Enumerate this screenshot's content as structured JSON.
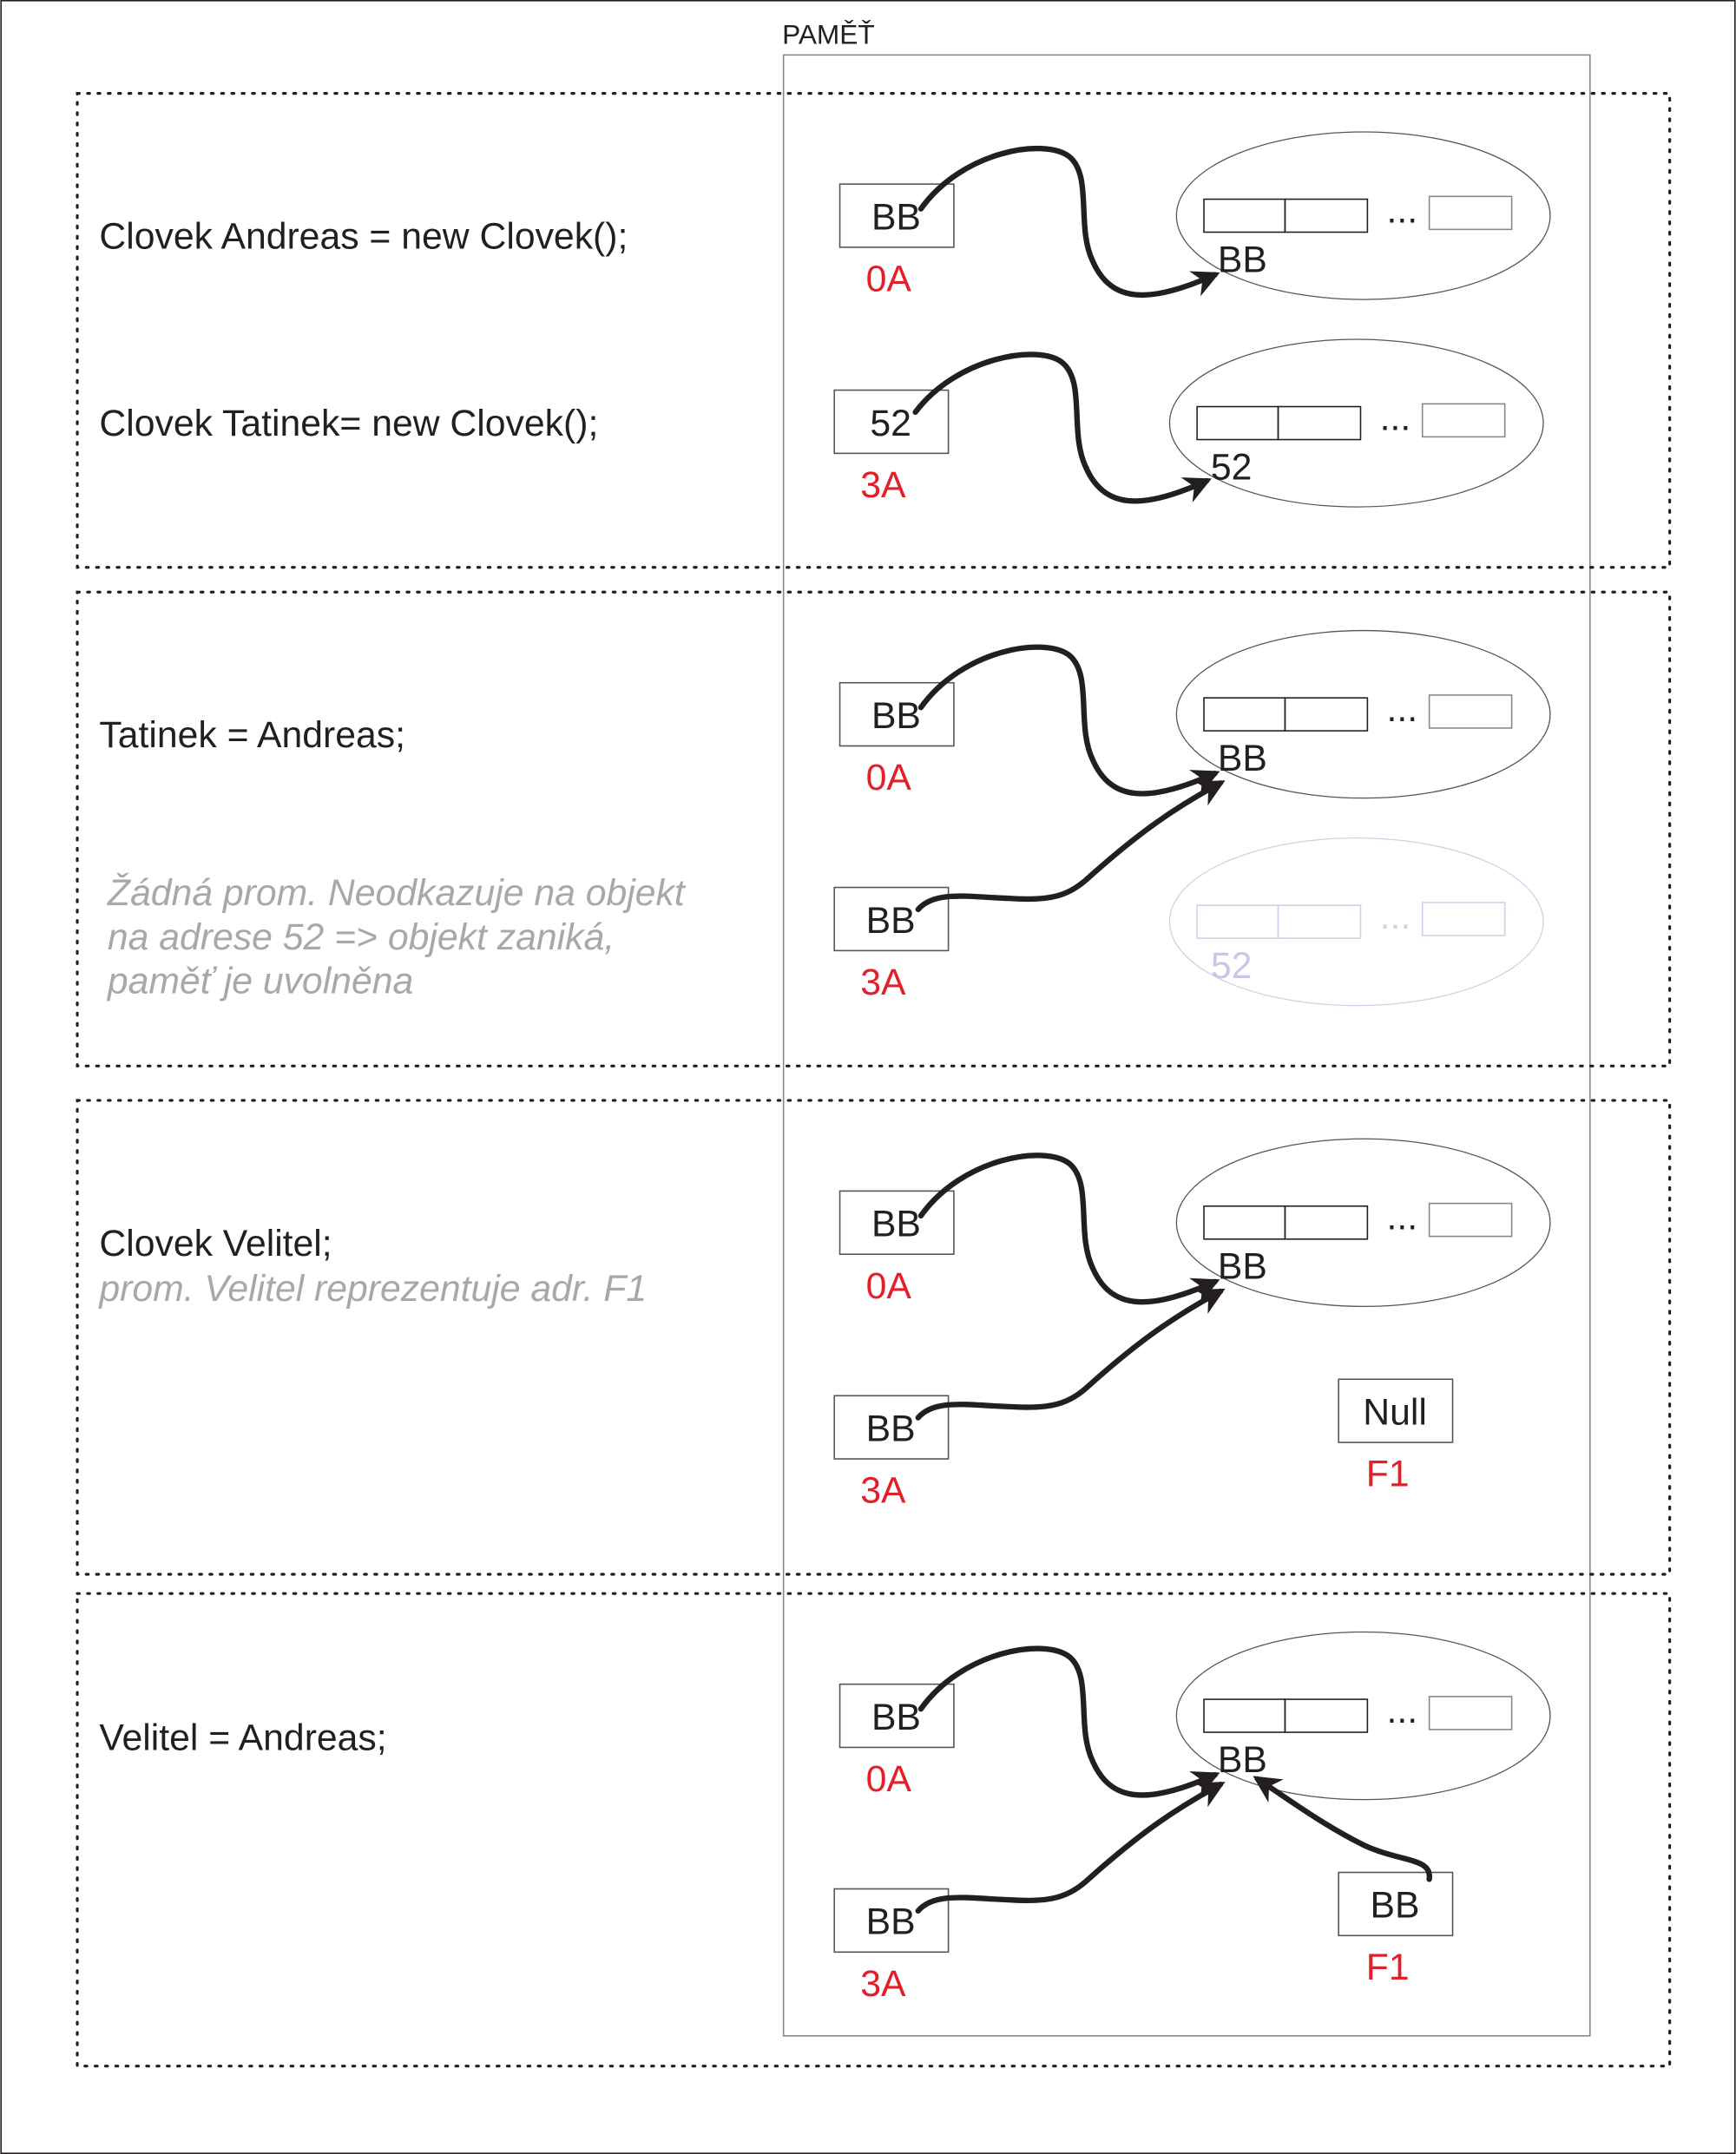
{
  "memory_title": "PAMĚŤ",
  "colors": {
    "address": "#e3202a",
    "text": "#231f20",
    "note": "#a8a8a8",
    "faded": "#d0d0ea"
  },
  "ellipsis": "...",
  "panels": [
    {
      "code": [
        "Clovek Andreas = new Clovek();",
        "Clovek Tatinek= new Clovek();"
      ],
      "notes": [],
      "vars": [
        {
          "value": "BB",
          "address": "0A",
          "target": "object-bb"
        },
        {
          "value": "52",
          "address": "3A",
          "target": "object-52"
        }
      ],
      "objects": [
        {
          "address": "BB",
          "faded": false
        },
        {
          "address": "52",
          "faded": false
        }
      ]
    },
    {
      "code": [
        "Tatinek = Andreas;"
      ],
      "notes": [
        "Žádná prom. Neodkazuje na objekt",
        "na adrese 52 => objekt zaniká,",
        "paměť je uvolněna"
      ],
      "vars": [
        {
          "value": "BB",
          "address": "0A",
          "target": "object-bb"
        },
        {
          "value": "BB",
          "address": "3A",
          "target": "object-bb"
        }
      ],
      "objects": [
        {
          "address": "BB",
          "faded": false
        },
        {
          "address": "52",
          "faded": true
        }
      ]
    },
    {
      "code": [
        "Clovek Velitel;"
      ],
      "notes": [
        "prom. Velitel reprezentuje adr. F1"
      ],
      "vars": [
        {
          "value": "BB",
          "address": "0A",
          "target": "object-bb"
        },
        {
          "value": "BB",
          "address": "3A",
          "target": "object-bb"
        },
        {
          "value": "Null",
          "address": "F1",
          "target": null
        }
      ],
      "objects": [
        {
          "address": "BB",
          "faded": false
        }
      ]
    },
    {
      "code": [
        "Velitel = Andreas;"
      ],
      "notes": [],
      "vars": [
        {
          "value": "BB",
          "address": "0A",
          "target": "object-bb"
        },
        {
          "value": "BB",
          "address": "3A",
          "target": "object-bb"
        },
        {
          "value": "BB",
          "address": "F1",
          "target": "object-bb"
        }
      ],
      "objects": [
        {
          "address": "BB",
          "faded": false
        }
      ]
    }
  ]
}
